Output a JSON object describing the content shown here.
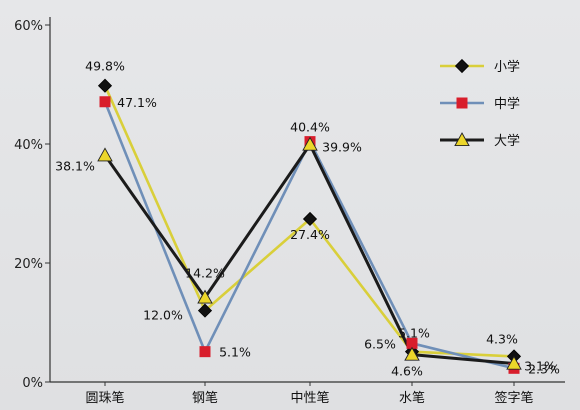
{
  "chart_data": {
    "type": "line",
    "title": "",
    "xlabel": "",
    "ylabel": "",
    "ylim": [
      0,
      60
    ],
    "y_ticks": [
      0,
      20,
      40,
      60
    ],
    "y_tick_labels": [
      "0%",
      "20%",
      "40%",
      "60%"
    ],
    "categories": [
      "圆珠笔",
      "钢笔",
      "中性笔",
      "水笔",
      "签字笔"
    ],
    "grid": false,
    "legend_position": "top-right",
    "series": [
      {
        "name": "小学",
        "line_color": "#d9cf3a",
        "marker": "diamond",
        "marker_color": "#111111",
        "values": [
          49.8,
          12.0,
          27.4,
          5.1,
          4.3
        ],
        "labels": [
          "49.8%",
          "12.0%",
          "27.4%",
          "5.1%",
          "4.3%"
        ]
      },
      {
        "name": "中学",
        "line_color": "#6f8fb8",
        "marker": "square",
        "marker_color": "#d81e2c",
        "values": [
          47.1,
          5.1,
          40.4,
          6.5,
          2.3
        ],
        "labels": [
          "47.1%",
          "5.1%",
          "40.4%",
          "6.5%",
          "2.3%"
        ]
      },
      {
        "name": "大学",
        "line_color": "#1b1b1b",
        "marker": "triangle",
        "marker_color": "#ecd62a",
        "values": [
          38.1,
          14.2,
          39.9,
          4.6,
          3.1
        ],
        "labels": [
          "38.1%",
          "14.2%",
          "39.9%",
          "4.6%",
          "3.1%"
        ]
      }
    ]
  }
}
